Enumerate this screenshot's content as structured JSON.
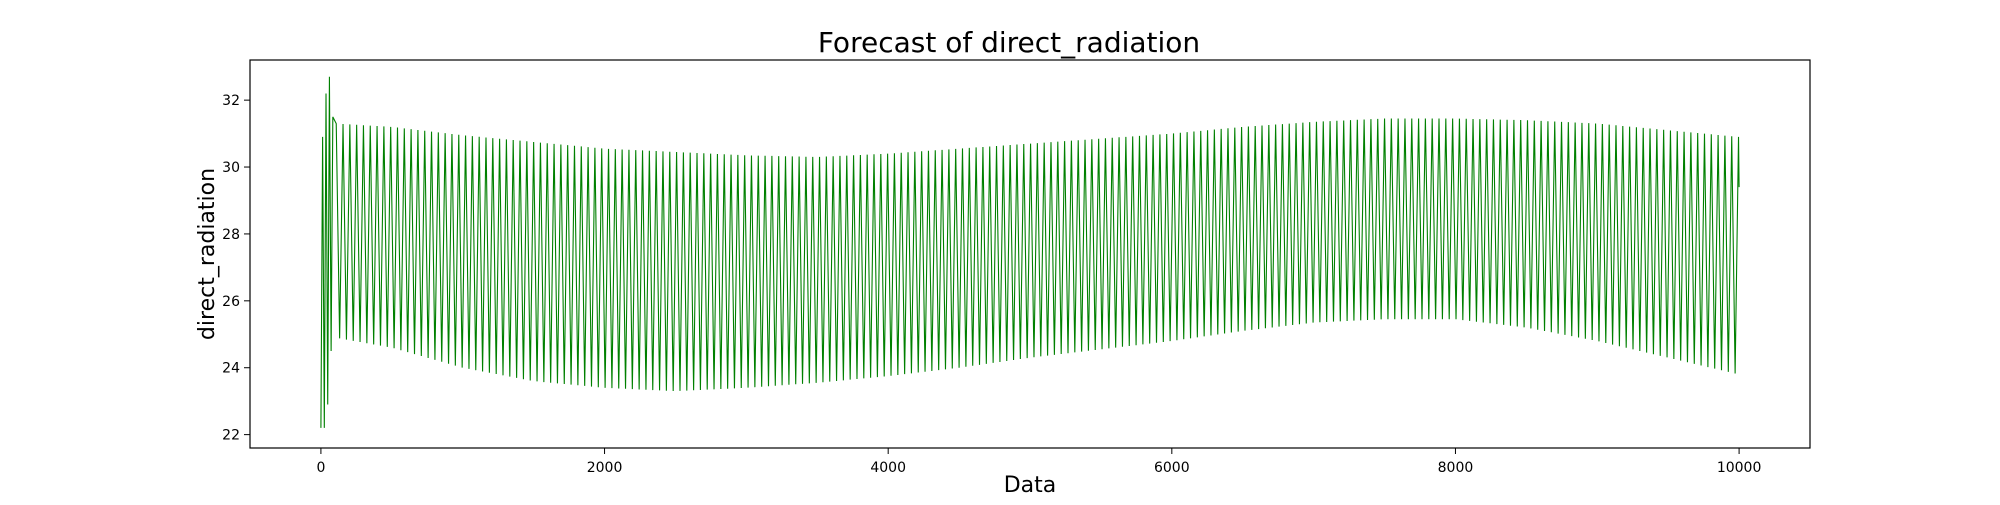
{
  "chart_data": {
    "type": "line",
    "title": "Forecast of direct_radiation",
    "xlabel": "Data",
    "ylabel": "direct_radiation",
    "xlim": [
      -500,
      10500
    ],
    "ylim": [
      21.6,
      33.2
    ],
    "xticks": [
      0,
      2000,
      4000,
      6000,
      8000,
      10000
    ],
    "xtick_labels": [
      "0",
      "2000",
      "4000",
      "6000",
      "8000",
      "10000"
    ],
    "yticks": [
      22,
      24,
      26,
      28,
      30,
      32
    ],
    "ytick_labels": [
      "22",
      "24",
      "26",
      "28",
      "30",
      "32"
    ],
    "grid": false,
    "legend": "none",
    "series": [
      {
        "color": "#008000",
        "x_start": 0,
        "x_end": 10000,
        "oscillation_period": 48,
        "initial_spikes": [
          {
            "x": 0,
            "y": 22.2
          },
          {
            "x": 12,
            "y": 30.9
          },
          {
            "x": 24,
            "y": 22.2
          },
          {
            "x": 36,
            "y": 32.2
          },
          {
            "x": 48,
            "y": 22.9
          },
          {
            "x": 60,
            "y": 32.7
          },
          {
            "x": 72,
            "y": 24.5
          },
          {
            "x": 84,
            "y": 31.5
          }
        ],
        "upper_envelope": [
          {
            "x": 100,
            "y": 31.3
          },
          {
            "x": 500,
            "y": 31.2
          },
          {
            "x": 1000,
            "y": 30.95
          },
          {
            "x": 1500,
            "y": 30.75
          },
          {
            "x": 2000,
            "y": 30.55
          },
          {
            "x": 2500,
            "y": 30.45
          },
          {
            "x": 3000,
            "y": 30.35
          },
          {
            "x": 3500,
            "y": 30.3
          },
          {
            "x": 4000,
            "y": 30.4
          },
          {
            "x": 4500,
            "y": 30.55
          },
          {
            "x": 5000,
            "y": 30.7
          },
          {
            "x": 5500,
            "y": 30.85
          },
          {
            "x": 6000,
            "y": 31.0
          },
          {
            "x": 6500,
            "y": 31.2
          },
          {
            "x": 7000,
            "y": 31.35
          },
          {
            "x": 7500,
            "y": 31.45
          },
          {
            "x": 8000,
            "y": 31.45
          },
          {
            "x": 8500,
            "y": 31.4
          },
          {
            "x": 9000,
            "y": 31.3
          },
          {
            "x": 9500,
            "y": 31.1
          },
          {
            "x": 10000,
            "y": 30.9
          }
        ],
        "lower_envelope": [
          {
            "x": 100,
            "y": 24.9
          },
          {
            "x": 500,
            "y": 24.6
          },
          {
            "x": 1000,
            "y": 24.0
          },
          {
            "x": 1500,
            "y": 23.6
          },
          {
            "x": 2000,
            "y": 23.4
          },
          {
            "x": 2500,
            "y": 23.3
          },
          {
            "x": 3000,
            "y": 23.4
          },
          {
            "x": 3500,
            "y": 23.55
          },
          {
            "x": 4000,
            "y": 23.75
          },
          {
            "x": 4500,
            "y": 24.0
          },
          {
            "x": 5000,
            "y": 24.3
          },
          {
            "x": 5500,
            "y": 24.55
          },
          {
            "x": 6000,
            "y": 24.8
          },
          {
            "x": 6500,
            "y": 25.1
          },
          {
            "x": 7000,
            "y": 25.35
          },
          {
            "x": 7500,
            "y": 25.45
          },
          {
            "x": 8000,
            "y": 25.45
          },
          {
            "x": 8500,
            "y": 25.2
          },
          {
            "x": 9000,
            "y": 24.8
          },
          {
            "x": 9500,
            "y": 24.3
          },
          {
            "x": 10000,
            "y": 23.8
          }
        ],
        "last_value": 29.4
      }
    ]
  }
}
